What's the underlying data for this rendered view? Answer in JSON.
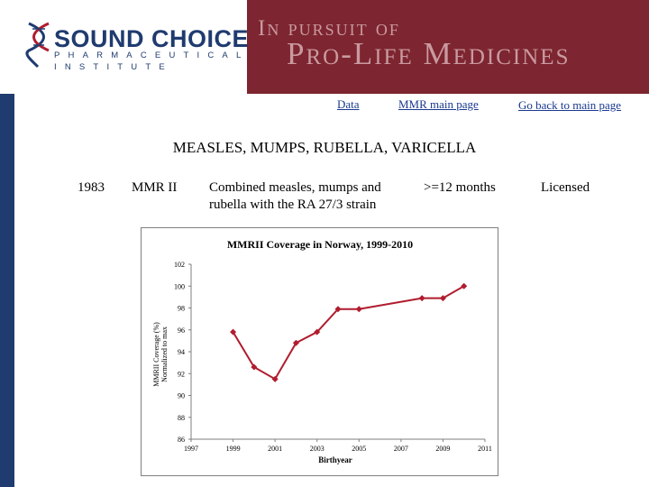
{
  "header": {
    "logo": {
      "name": "SOUND CHOICE",
      "line1": "PHARMACEUTICAL",
      "line2": "INSTITUTE"
    },
    "tagline_small": "In pursuit of",
    "tagline_large": "Pro-Life Medicines"
  },
  "nav": {
    "data": "Data",
    "mmr_main": "MMR main  page",
    "back": "Go back to main page"
  },
  "colors": {
    "sidebar": "#1f3b6f",
    "banner": "#7d2530",
    "series": "#b01c2e",
    "link": "#1a3a8f"
  },
  "page_title": "MEASLES, MUMPS, RUBELLA, VARICELLA",
  "vaccine_row": {
    "year": "1983",
    "name": "MMR II",
    "description_1": "Combined measles, mumps and",
    "description_2": "rubella with the RA 27/3 strain",
    "age": ">=12 months",
    "status": "Licensed"
  },
  "chart_data": {
    "type": "line",
    "title": "MMRII Coverage in Norway, 1999-2010",
    "xlabel": "Birthyear",
    "ylabel_1": "MMRII Coverage (%)",
    "ylabel_2": "Normalized to max",
    "xlim": [
      1997,
      2011
    ],
    "ylim": [
      86,
      102
    ],
    "x_ticks": [
      "1997",
      "1999",
      "2001",
      "2003",
      "2005",
      "2007",
      "2009",
      "2011"
    ],
    "y_ticks": [
      "86",
      "88",
      "90",
      "92",
      "94",
      "96",
      "98",
      "100",
      "102"
    ],
    "grid": false,
    "x": [
      1999,
      2000,
      2001,
      2002,
      2003,
      2004,
      2005,
      2008,
      2009,
      2010
    ],
    "y": [
      95.8,
      92.6,
      91.5,
      94.8,
      95.8,
      97.9,
      97.9,
      98.9,
      98.9,
      100
    ]
  }
}
